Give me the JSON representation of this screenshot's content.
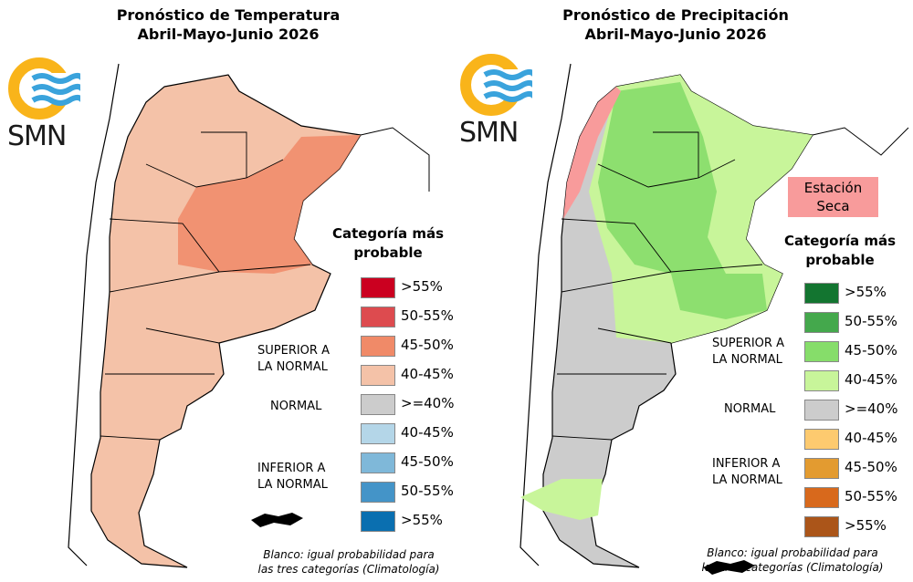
{
  "temperature": {
    "title_line1": "Pronóstico de Temperatura",
    "title_line2": "Abril-Mayo-Junio 2026",
    "logo_text": "SMN",
    "legend_title_line1": "Categoría más",
    "legend_title_line2": "probable",
    "items": [
      {
        "label": ">55%",
        "color": "#cb0020"
      },
      {
        "label": "50-55%",
        "color": "#dd4b4f"
      },
      {
        "label": "45-50%",
        "color": "#f08a68"
      },
      {
        "label": "40-45%",
        "color": "#f4c2a8"
      },
      {
        "label": ">=40%",
        "color": "#cccccc"
      },
      {
        "label": "40-45%",
        "color": "#b4d6e8"
      },
      {
        "label": "45-50%",
        "color": "#7fb8d9"
      },
      {
        "label": "50-55%",
        "color": "#4494c8"
      },
      {
        "label": ">55%",
        "color": "#0a6fb0"
      }
    ],
    "category_above_1": "SUPERIOR A",
    "category_above_2": "LA NORMAL",
    "category_normal": "NORMAL",
    "category_below_1": "INFERIOR A",
    "category_below_2": "LA NORMAL",
    "note_line1": "Blanco: igual probabilidad para",
    "note_line2": "las tres categorías (Climatología)"
  },
  "precipitation": {
    "title_line1": "Pronóstico de Precipitación",
    "title_line2": "Abril-Mayo-Junio 2026",
    "logo_text": "SMN",
    "dry_season_line1": "Estación",
    "dry_season_line2": "Seca",
    "legend_title_line1": "Categoría más",
    "legend_title_line2": "probable",
    "items": [
      {
        "label": ">55%",
        "color": "#137530"
      },
      {
        "label": "50-55%",
        "color": "#44a84c"
      },
      {
        "label": "45-50%",
        "color": "#86dd6a"
      },
      {
        "label": "40-45%",
        "color": "#c8f59a"
      },
      {
        "label": ">=40%",
        "color": "#cccccc"
      },
      {
        "label": "40-45%",
        "color": "#fdca6f"
      },
      {
        "label": "45-50%",
        "color": "#e39b30"
      },
      {
        "label": "50-55%",
        "color": "#d8691c"
      },
      {
        "label": ">55%",
        "color": "#ab5519"
      }
    ],
    "category_above_1": "SUPERIOR A",
    "category_above_2": "LA NORMAL",
    "category_normal": "NORMAL",
    "category_below_1": "INFERIOR A",
    "category_below_2": "LA NORMAL",
    "note_line1": "Blanco: igual probabilidad para",
    "note_line2": "las tres categorías (Climatología)"
  }
}
